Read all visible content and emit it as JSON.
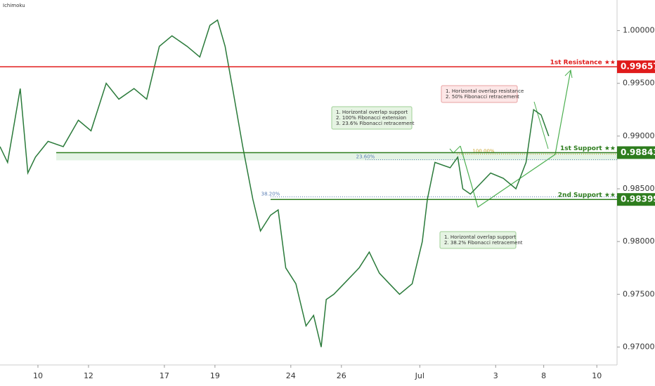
{
  "chart_data": {
    "type": "line",
    "indicator": "Ichimoku",
    "xlim": [
      0,
      24.4
    ],
    "ylim": [
      0.9683,
      1.0029
    ],
    "xticks": [
      {
        "value": 1.5,
        "label": "10"
      },
      {
        "value": 3.5,
        "label": "12"
      },
      {
        "value": 6.5,
        "label": "17"
      },
      {
        "value": 8.5,
        "label": "19"
      },
      {
        "value": 11.5,
        "label": "24"
      },
      {
        "value": 13.5,
        "label": "26"
      },
      {
        "value": 16.6,
        "label": "Jul"
      },
      {
        "value": 19.6,
        "label": "3"
      },
      {
        "value": 21.5,
        "label": "8"
      },
      {
        "value": 23.6,
        "label": "10"
      }
    ],
    "yticks": [
      {
        "value": 1.0,
        "label": "1.00000"
      },
      {
        "value": 0.995,
        "label": "0.99500"
      },
      {
        "value": 0.99,
        "label": "0.99000"
      },
      {
        "value": 0.985,
        "label": "0.98500"
      },
      {
        "value": 0.98,
        "label": "0.98000"
      },
      {
        "value": 0.975,
        "label": "0.97500"
      },
      {
        "value": 0.97,
        "label": "0.97000"
      }
    ],
    "series": [
      {
        "color": "#2a7a3a",
        "x": [
          0,
          0.3,
          0.8,
          1.1,
          1.4,
          1.9,
          2.5,
          3.1,
          3.6,
          4.2,
          4.7,
          5.3,
          5.8,
          6.3,
          6.8,
          7.4,
          7.9,
          8.3,
          8.6,
          8.9,
          9.2,
          9.6,
          10.0,
          10.3,
          10.7,
          11.0,
          11.3,
          11.7,
          12.1,
          12.4,
          12.7,
          12.9,
          13.2,
          13.6,
          14.2,
          14.6,
          15.0,
          15.4,
          15.8,
          16.3,
          16.7,
          16.9,
          17.2,
          17.8,
          18.1,
          18.3,
          18.6,
          19.0,
          19.4,
          19.9,
          20.4,
          20.8,
          21.1,
          21.4,
          21.7
        ],
        "values": [
          0.989,
          0.9875,
          0.9945,
          0.9865,
          0.988,
          0.9895,
          0.989,
          0.9915,
          0.9905,
          0.995,
          0.9935,
          0.9945,
          0.9935,
          0.9985,
          0.9995,
          0.9985,
          0.9975,
          1.0005,
          1.001,
          0.9985,
          0.9945,
          0.989,
          0.984,
          0.981,
          0.9825,
          0.983,
          0.9775,
          0.976,
          0.972,
          0.973,
          0.97,
          0.9745,
          0.975,
          0.976,
          0.9775,
          0.979,
          0.977,
          0.976,
          0.975,
          0.976,
          0.98,
          0.984,
          0.9875,
          0.987,
          0.988,
          0.985,
          0.9845,
          0.9855,
          0.9865,
          0.986,
          0.985,
          0.9875,
          0.9925,
          0.992,
          0.99
        ]
      }
    ],
    "levels": [
      {
        "name": "1st Resistance ★★",
        "value": 0.99657,
        "color": "#e01b1b"
      },
      {
        "name": "1st Support ★★",
        "value": 0.98843,
        "color": "#2e7d1e"
      },
      {
        "name": "2nd Support ★★",
        "value": 0.98399,
        "color": "#2e7d1e"
      }
    ],
    "fib_lines": [
      {
        "label": "23.60%",
        "value": 0.98776
      },
      {
        "label": "38.20%",
        "value": 0.98424
      },
      {
        "label": "100.00%",
        "value": 0.98829
      }
    ],
    "annotations": [
      {
        "lines": [
          "1. Horizontal overlap resistance",
          "2. 50% Fibonacci retracement"
        ]
      },
      {
        "lines": [
          "1. Horizontal overlap support",
          "2. 100% Fibonacci extension",
          "3. 23.6% Fibonacci retracement"
        ]
      },
      {
        "lines": [
          "1.  Horizontal overlap support",
          "2. 38.2% Fibonacci retracement"
        ]
      }
    ]
  }
}
